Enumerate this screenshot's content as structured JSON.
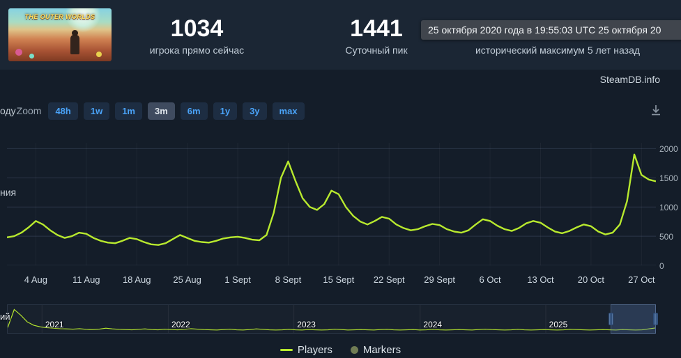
{
  "header": {
    "game_logo_text": "THE OUTER WORLDS",
    "stats": [
      {
        "value": "1034",
        "label": "игрока прямо сейчас"
      },
      {
        "value": "1441",
        "label": "Суточный пик"
      },
      {
        "value": "",
        "label": "исторический максимум 5 лет назад"
      }
    ],
    "tooltip": "25 октября 2020 года в 19:55:03 UTC 25 октября 20",
    "watermark": "SteamDB.info"
  },
  "toolbar": {
    "left_fragment": "оду",
    "zoom_label": "Zoom",
    "buttons": [
      "48h",
      "1w",
      "1m",
      "3m",
      "6m",
      "1y",
      "3y",
      "max"
    ],
    "selected": "3m"
  },
  "fragments": {
    "mid_left": "ния",
    "nav_left": "ий"
  },
  "colors": {
    "line": "#b8e92e",
    "marker_dot": "#707c54",
    "button_text": "#4aa3f8",
    "grid": "#2a3547",
    "selection": "#5b7cb8"
  },
  "chart_data": {
    "type": "line",
    "title": "",
    "series_name": "Players",
    "color": "#b8e92e",
    "xlabel": "",
    "ylabel": "",
    "days_span": 90,
    "x_tick_labels": [
      "4 Aug",
      "11 Aug",
      "18 Aug",
      "25 Aug",
      "1 Sept",
      "8 Sept",
      "15 Sept",
      "22 Sept",
      "29 Sept",
      "6 Oct",
      "13 Oct",
      "20 Oct",
      "27 Oct"
    ],
    "x_tick_days": [
      4,
      11,
      18,
      25,
      32,
      39,
      46,
      53,
      60,
      67,
      74,
      81,
      88
    ],
    "y_ticks": [
      0,
      500,
      1000,
      1500,
      2000
    ],
    "ylim": [
      0,
      2100
    ],
    "grid": true,
    "values": [
      480,
      500,
      560,
      650,
      760,
      700,
      600,
      520,
      470,
      500,
      560,
      540,
      470,
      420,
      390,
      380,
      420,
      470,
      450,
      400,
      360,
      350,
      380,
      450,
      520,
      470,
      420,
      400,
      390,
      420,
      460,
      480,
      490,
      470,
      440,
      430,
      520,
      900,
      1500,
      1780,
      1450,
      1150,
      1000,
      950,
      1050,
      1280,
      1220,
      1000,
      850,
      750,
      700,
      760,
      830,
      800,
      700,
      640,
      600,
      620,
      670,
      710,
      690,
      620,
      580,
      560,
      600,
      700,
      790,
      760,
      680,
      620,
      590,
      640,
      720,
      760,
      730,
      650,
      580,
      550,
      590,
      650,
      700,
      670,
      580,
      530,
      560,
      700,
      1100,
      1900,
      1550,
      1470,
      1440
    ]
  },
  "navigator": {
    "year_labels": [
      {
        "label": "2021",
        "pct": 5.3
      },
      {
        "label": "2022",
        "pct": 24.8
      },
      {
        "label": "2023",
        "pct": 44.2
      },
      {
        "label": "2024",
        "pct": 63.7
      },
      {
        "label": "2025",
        "pct": 83.1
      }
    ],
    "points": [
      15,
      95,
      70,
      40,
      25,
      18,
      14,
      12,
      10,
      9,
      8,
      10,
      7,
      6,
      8,
      12,
      9,
      7,
      6,
      5,
      7,
      9,
      6,
      5,
      8,
      6,
      5,
      7,
      10,
      8,
      6,
      5,
      4,
      6,
      8,
      5,
      4,
      6,
      9,
      7,
      5,
      4,
      5,
      7,
      5,
      4,
      6,
      5,
      4,
      5,
      8,
      6,
      4,
      5,
      6,
      5,
      4,
      6,
      7,
      5,
      4,
      5,
      6,
      4,
      5,
      7,
      5,
      4,
      5,
      6,
      5,
      4,
      6,
      8,
      6,
      5,
      4,
      5,
      7,
      5,
      4,
      5,
      6,
      5,
      4,
      5,
      7,
      6,
      5,
      4,
      5,
      6,
      5,
      4,
      6,
      5,
      4,
      5,
      9,
      13
    ],
    "selection_start_pct": 93.2,
    "selection_end_pct": 100
  },
  "legend": [
    {
      "label": "Players",
      "marker": "line",
      "color": "#b8e92e"
    },
    {
      "label": "Markers",
      "marker": "circle",
      "color": "#707c54"
    }
  ]
}
